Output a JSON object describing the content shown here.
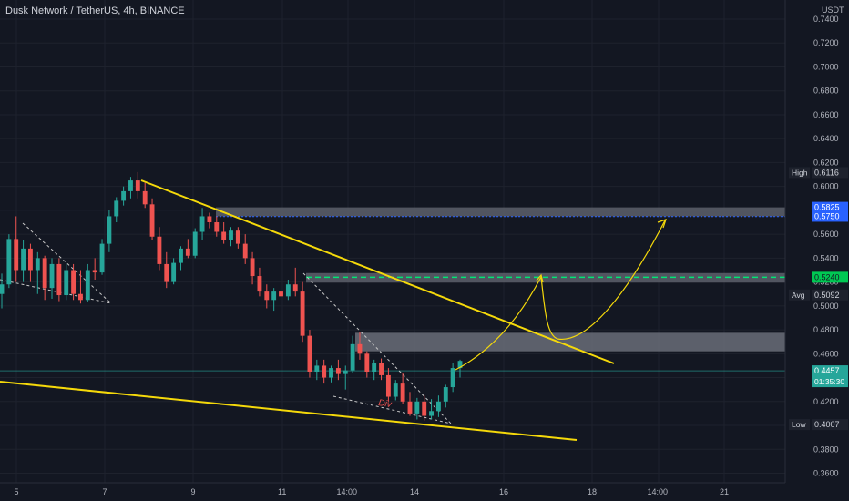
{
  "chart_data": {
    "type": "candlestick",
    "title": "Dusk Network / TetherUS, 4h, BINANCE",
    "currency": "USDT",
    "y_axis": {
      "ticks": [
        "0.7400",
        "0.7200",
        "0.7000",
        "0.6800",
        "0.6600",
        "0.6400",
        "0.6200",
        "0.6000",
        "0.5800",
        "0.5600",
        "0.5400",
        "0.5200",
        "0.5000",
        "0.4800",
        "0.4600",
        "0.4400",
        "0.4200",
        "0.4000",
        "0.3800",
        "0.3600"
      ],
      "range": [
        0.352,
        0.756
      ]
    },
    "x_axis": {
      "ticks": [
        "5",
        "7",
        "9",
        "11",
        "14:00",
        "14",
        "16",
        "18",
        "14:00",
        "21"
      ]
    },
    "price_labels": {
      "high": {
        "label": "High",
        "value": "0.6116"
      },
      "low": {
        "label": "Low",
        "value": "0.4007"
      },
      "avg": {
        "label": "Avg",
        "value": "0.5092"
      },
      "zone_top": "0.5825",
      "zone_bottom": "0.5750",
      "green_level": "0.5240",
      "current": {
        "value": "0.4457",
        "countdown": "01:35:30"
      }
    },
    "annotation": "Div",
    "candles": [
      [
        0.51,
        0.527,
        0.498,
        0.518
      ],
      [
        0.518,
        0.56,
        0.515,
        0.556
      ],
      [
        0.556,
        0.575,
        0.52,
        0.53
      ],
      [
        0.53,
        0.555,
        0.52,
        0.548
      ],
      [
        0.548,
        0.552,
        0.52,
        0.53
      ],
      [
        0.53,
        0.545,
        0.51,
        0.54
      ],
      [
        0.54,
        0.542,
        0.505,
        0.515
      ],
      [
        0.515,
        0.54,
        0.506,
        0.535
      ],
      [
        0.535,
        0.54,
        0.504,
        0.509
      ],
      [
        0.509,
        0.535,
        0.505,
        0.53
      ],
      [
        0.53,
        0.535,
        0.505,
        0.51
      ],
      [
        0.51,
        0.53,
        0.502,
        0.505
      ],
      [
        0.505,
        0.535,
        0.503,
        0.53
      ],
      [
        0.53,
        0.54,
        0.522,
        0.528
      ],
      [
        0.528,
        0.556,
        0.526,
        0.552
      ],
      [
        0.552,
        0.58,
        0.545,
        0.575
      ],
      [
        0.575,
        0.591,
        0.57,
        0.588
      ],
      [
        0.588,
        0.6,
        0.584,
        0.596
      ],
      [
        0.596,
        0.608,
        0.59,
        0.605
      ],
      [
        0.605,
        0.612,
        0.59,
        0.596
      ],
      [
        0.596,
        0.603,
        0.582,
        0.585
      ],
      [
        0.585,
        0.59,
        0.555,
        0.558
      ],
      [
        0.558,
        0.566,
        0.53,
        0.535
      ],
      [
        0.535,
        0.545,
        0.515,
        0.52
      ],
      [
        0.52,
        0.54,
        0.518,
        0.536
      ],
      [
        0.536,
        0.55,
        0.53,
        0.548
      ],
      [
        0.548,
        0.556,
        0.54,
        0.542
      ],
      [
        0.542,
        0.565,
        0.54,
        0.562
      ],
      [
        0.562,
        0.582,
        0.555,
        0.575
      ],
      [
        0.575,
        0.578,
        0.565,
        0.57
      ],
      [
        0.57,
        0.575,
        0.558,
        0.562
      ],
      [
        0.562,
        0.57,
        0.552,
        0.555
      ],
      [
        0.555,
        0.566,
        0.55,
        0.563
      ],
      [
        0.563,
        0.566,
        0.548,
        0.552
      ],
      [
        0.552,
        0.56,
        0.535,
        0.54
      ],
      [
        0.54,
        0.545,
        0.518,
        0.525
      ],
      [
        0.525,
        0.532,
        0.508,
        0.512
      ],
      [
        0.512,
        0.518,
        0.498,
        0.505
      ],
      [
        0.505,
        0.515,
        0.496,
        0.512
      ],
      [
        0.512,
        0.522,
        0.505,
        0.508
      ],
      [
        0.508,
        0.522,
        0.505,
        0.518
      ],
      [
        0.518,
        0.532,
        0.508,
        0.512
      ],
      [
        0.512,
        0.52,
        0.47,
        0.475
      ],
      [
        0.475,
        0.48,
        0.44,
        0.445
      ],
      [
        0.445,
        0.455,
        0.438,
        0.45
      ],
      [
        0.45,
        0.455,
        0.435,
        0.44
      ],
      [
        0.44,
        0.45,
        0.436,
        0.448
      ],
      [
        0.448,
        0.455,
        0.438,
        0.443
      ],
      [
        0.443,
        0.45,
        0.43,
        0.446
      ],
      [
        0.446,
        0.475,
        0.444,
        0.468
      ],
      [
        0.468,
        0.478,
        0.455,
        0.46
      ],
      [
        0.46,
        0.462,
        0.44,
        0.445
      ],
      [
        0.445,
        0.455,
        0.438,
        0.452
      ],
      [
        0.452,
        0.456,
        0.438,
        0.442
      ],
      [
        0.442,
        0.448,
        0.42,
        0.424
      ],
      [
        0.424,
        0.438,
        0.421,
        0.435
      ],
      [
        0.435,
        0.444,
        0.418,
        0.42
      ],
      [
        0.42,
        0.428,
        0.408,
        0.41
      ],
      [
        0.41,
        0.423,
        0.405,
        0.42
      ],
      [
        0.42,
        0.425,
        0.404,
        0.408
      ],
      [
        0.408,
        0.422,
        0.405,
        0.412
      ],
      [
        0.412,
        0.425,
        0.407,
        0.42
      ],
      [
        0.42,
        0.434,
        0.415,
        0.432
      ],
      [
        0.432,
        0.452,
        0.428,
        0.448
      ],
      [
        0.448,
        0.455,
        0.44,
        0.454
      ]
    ]
  }
}
